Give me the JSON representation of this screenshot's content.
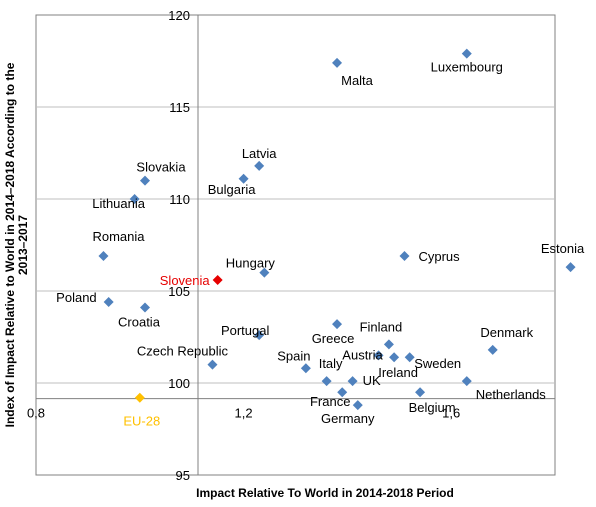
{
  "chart_data": {
    "type": "scatter",
    "title": "",
    "xlabel": "Impact Relative To World in 2014-2018 Period",
    "ylabel": "Index of Impact Relative to World in 2014–2018 According to the 2013–2017",
    "xlim": [
      0.8,
      1.8
    ],
    "ylim": [
      95,
      120
    ],
    "grid": true,
    "x_ticks": [
      "0,8",
      "1,2",
      "1,6"
    ],
    "y_ticks": [
      "95",
      "100",
      "105",
      "110",
      "115",
      "120"
    ],
    "colors": {
      "default": "#4f81bd",
      "slovenia": "#e60000",
      "eu28": "#ffc000",
      "grid": "#bfbfbf",
      "axis": "#808080"
    },
    "points": [
      {
        "name": "Luxembourg",
        "x": 1.63,
        "y": 117.9,
        "color": "default"
      },
      {
        "name": "Malta",
        "x": 1.38,
        "y": 117.4,
        "color": "default"
      },
      {
        "name": "Latvia",
        "x": 1.23,
        "y": 111.8,
        "color": "default"
      },
      {
        "name": "Bulgaria",
        "x": 1.2,
        "y": 111.1,
        "color": "default"
      },
      {
        "name": "Slovakia",
        "x": 1.01,
        "y": 111.0,
        "color": "default"
      },
      {
        "name": "Lithuania",
        "x": 0.99,
        "y": 110.0,
        "color": "default"
      },
      {
        "name": "Romania",
        "x": 0.93,
        "y": 106.9,
        "color": "default"
      },
      {
        "name": "Cyprus",
        "x": 1.51,
        "y": 106.9,
        "color": "default"
      },
      {
        "name": "Estonia",
        "x": 1.83,
        "y": 106.3,
        "color": "default"
      },
      {
        "name": "Hungary",
        "x": 1.24,
        "y": 106.0,
        "color": "default"
      },
      {
        "name": "Slovenia",
        "x": 1.15,
        "y": 105.6,
        "color": "slovenia"
      },
      {
        "name": "Poland",
        "x": 0.94,
        "y": 104.4,
        "color": "default"
      },
      {
        "name": "Croatia",
        "x": 1.01,
        "y": 104.1,
        "color": "default"
      },
      {
        "name": "Greece",
        "x": 1.38,
        "y": 103.2,
        "color": "default"
      },
      {
        "name": "Portugal",
        "x": 1.23,
        "y": 102.6,
        "color": "default"
      },
      {
        "name": "Finland",
        "x": 1.48,
        "y": 102.1,
        "color": "default"
      },
      {
        "name": "Denmark",
        "x": 1.68,
        "y": 101.8,
        "color": "default"
      },
      {
        "name": "Austria",
        "x": 1.46,
        "y": 101.5,
        "color": "default"
      },
      {
        "name": "Ireland",
        "x": 1.49,
        "y": 101.4,
        "color": "default"
      },
      {
        "name": "Sweden",
        "x": 1.52,
        "y": 101.4,
        "color": "default"
      },
      {
        "name": "Czech Republic",
        "x": 1.14,
        "y": 101.0,
        "color": "default"
      },
      {
        "name": "Spain",
        "x": 1.32,
        "y": 100.8,
        "color": "default"
      },
      {
        "name": "Italy",
        "x": 1.36,
        "y": 100.1,
        "color": "default"
      },
      {
        "name": "UK",
        "x": 1.41,
        "y": 100.1,
        "color": "default"
      },
      {
        "name": "Netherlands",
        "x": 1.63,
        "y": 100.1,
        "color": "default"
      },
      {
        "name": "France",
        "x": 1.39,
        "y": 99.5,
        "color": "default"
      },
      {
        "name": "Belgium",
        "x": 1.54,
        "y": 99.5,
        "color": "default"
      },
      {
        "name": "Germany",
        "x": 1.42,
        "y": 98.8,
        "color": "default"
      },
      {
        "name": "EU-28",
        "x": 1.0,
        "y": 99.2,
        "color": "eu28"
      }
    ]
  }
}
